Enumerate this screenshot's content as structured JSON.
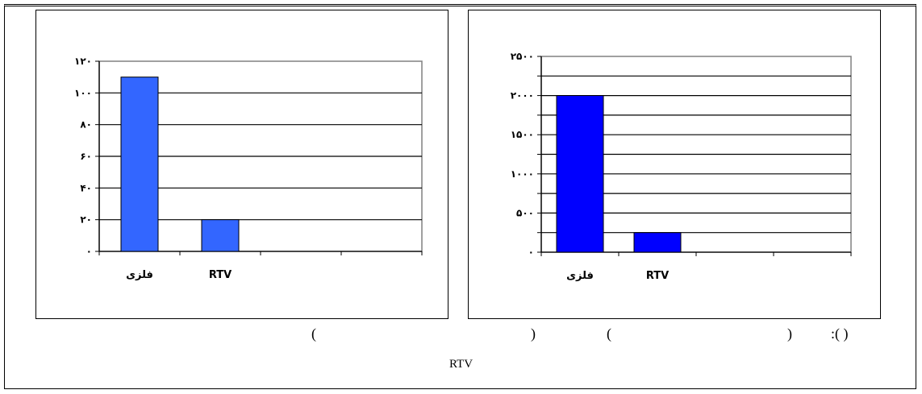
{
  "chart_data": [
    {
      "type": "bar",
      "categories": [
        "فلزی",
        "RTV",
        "",
        ""
      ],
      "values": [
        110,
        20,
        null,
        null
      ],
      "ylim": [
        0,
        120
      ],
      "yticks": [
        0,
        20,
        40,
        60,
        80,
        100,
        120
      ],
      "ytick_labels": [
        "۰",
        "۲۰",
        "۴۰",
        "۶۰",
        "۸۰",
        "۱۰۰",
        "۱۲۰"
      ],
      "grid": true,
      "bar_color": "#3366FF"
    },
    {
      "type": "bar",
      "categories": [
        "فلزی",
        "RTV",
        "",
        ""
      ],
      "values": [
        2000,
        250,
        null,
        null
      ],
      "ylim": [
        0,
        2500
      ],
      "yticks": [
        0,
        250,
        500,
        750,
        1000,
        1250,
        1500,
        1750,
        2000,
        2250,
        2500
      ],
      "ytick_labels": [
        "۰",
        "",
        "۵۰۰",
        "",
        "۱۰۰۰",
        "",
        "۱۵۰۰",
        "",
        "۲۰۰۰",
        "",
        "۲۵۰۰"
      ],
      "grid": true,
      "bar_color": "#0000FF"
    }
  ],
  "captions": {
    "p1": "(",
    "p2": ")",
    "p3": "(",
    "p4": ")",
    "p5": ":( )"
  },
  "footnote": "RTV"
}
